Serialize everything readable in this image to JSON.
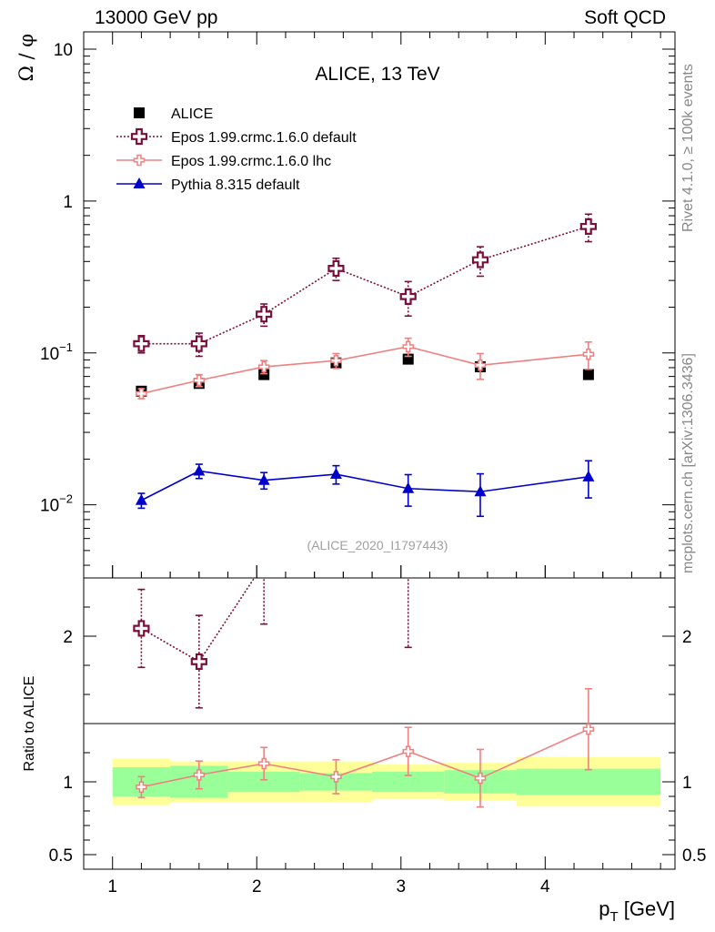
{
  "header": {
    "left": "13000 GeV pp",
    "right": "Soft QCD"
  },
  "side_labels": {
    "rivet": "Rivet 4.1.0, ≥ 100k events",
    "mcplots": "mcplots.cern.ch [arXiv:1306.3436]"
  },
  "chart_data": {
    "type": "scatter",
    "title": "ALICE, 13 TeV",
    "analysis_id": "(ALICE_2020_I1797443)",
    "xlabel": "p_T [GeV]",
    "ylabel": "Ω / φ",
    "ratio_ylabel": "Ratio to ALICE",
    "xlim": [
      0.8,
      4.9
    ],
    "ylim": [
      0.0033,
      13
    ],
    "ratio_ylim": [
      0.4,
      2.4
    ],
    "y_scale": "log",
    "x_ticks": [
      "1",
      "2",
      "3",
      "4"
    ],
    "y_ticks": [
      {
        "v": 0.01,
        "base": "10",
        "exp": "−2"
      },
      {
        "v": 0.1,
        "base": "10",
        "exp": "−1"
      },
      {
        "v": 1,
        "base": "1",
        "exp": ""
      },
      {
        "v": 10,
        "base": "10",
        "exp": ""
      }
    ],
    "ratio_ticks": [
      "0.5",
      "1",
      "2"
    ],
    "x": [
      1.2,
      1.6,
      2.05,
      2.55,
      3.05,
      3.55,
      4.3
    ],
    "bin_edges": [
      1.0,
      1.4,
      1.8,
      2.3,
      2.8,
      3.3,
      3.8,
      4.8
    ],
    "series": [
      {
        "name": "ALICE",
        "style": "data",
        "color": "#000000",
        "values": [
          0.056,
          0.063,
          0.072,
          0.086,
          0.091,
          0.081,
          0.072
        ],
        "rel_err_stat": [
          0.1,
          0.11,
          0.07,
          0.06,
          0.07,
          0.08,
          0.09
        ],
        "rel_err_total": [
          0.16,
          0.14,
          0.14,
          0.14,
          0.12,
          0.13,
          0.17
        ]
      },
      {
        "name": "Epos 1.99.crmc.1.6.0 default",
        "style": "open-cross-dotted",
        "color": "#7a0f3c",
        "values": [
          0.115,
          0.115,
          0.18,
          0.36,
          0.235,
          0.41,
          0.68
        ],
        "err": [
          0.015,
          0.02,
          0.03,
          0.06,
          0.06,
          0.09,
          0.14
        ]
      },
      {
        "name": "Epos 1.99.crmc.1.6.0 lhc",
        "style": "small-cross-solid",
        "color": "#f08080",
        "values": [
          0.054,
          0.066,
          0.081,
          0.089,
          0.11,
          0.083,
          0.098
        ],
        "err": [
          0.004,
          0.006,
          0.008,
          0.01,
          0.015,
          0.016,
          0.02
        ]
      },
      {
        "name": "Pythia 8.315 default",
        "style": "triangle-solid",
        "color": "#0000cc",
        "values": [
          0.0107,
          0.0167,
          0.0145,
          0.0159,
          0.0128,
          0.0122,
          0.0153
        ],
        "err": [
          0.0012,
          0.0018,
          0.0018,
          0.0022,
          0.003,
          0.0038,
          0.0042
        ]
      }
    ]
  }
}
